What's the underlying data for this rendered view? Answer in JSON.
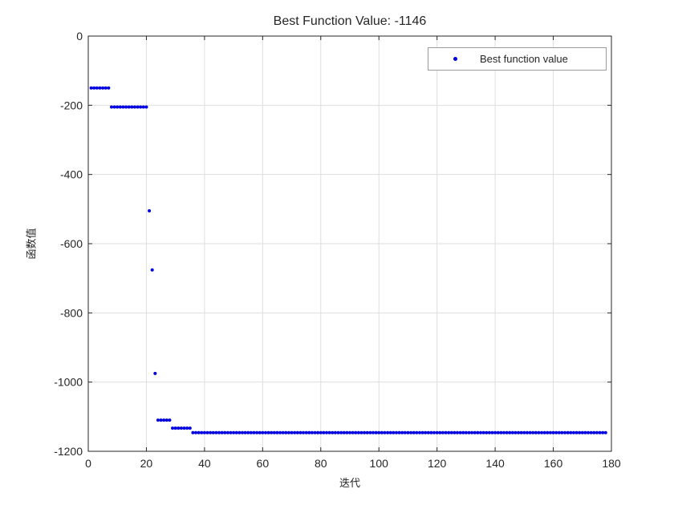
{
  "colors": {
    "background": "#ffffff",
    "axis": "#262626",
    "grid": "#dedede",
    "tick_text": "#262626",
    "marker": "#0000e1",
    "legend_border": "#9b9b9b"
  },
  "legend": {
    "entries": [
      {
        "label": "Best function value",
        "marker": "dot",
        "color": "#0000e1"
      }
    ],
    "position": "top-right"
  },
  "chart_data": {
    "type": "scatter",
    "title": "Best Function Value: -1146",
    "xlabel": "迭代",
    "ylabel": "函数值",
    "xlim": [
      0,
      180
    ],
    "ylim": [
      -1200,
      0
    ],
    "xticks": [
      0,
      20,
      40,
      60,
      80,
      100,
      120,
      140,
      160,
      180
    ],
    "yticks": [
      0,
      -200,
      -400,
      -600,
      -800,
      -1000,
      -1200
    ],
    "grid": true,
    "legend_position": "top-right",
    "series": [
      {
        "name": "Best function value",
        "marker": "point",
        "color": "#0000e1",
        "x_step": 1,
        "segments": [
          {
            "x_start": 1,
            "x_end": 7,
            "y": -150
          },
          {
            "x_start": 8,
            "x_end": 20,
            "y": -205
          },
          {
            "x_start": 21,
            "x_end": 21,
            "y": -505
          },
          {
            "x_start": 22,
            "x_end": 22,
            "y": -676
          },
          {
            "x_start": 23,
            "x_end": 23,
            "y": -975
          },
          {
            "x_start": 24,
            "x_end": 28,
            "y": -1110
          },
          {
            "x_start": 29,
            "x_end": 35,
            "y": -1133
          },
          {
            "x_start": 36,
            "x_end": 178,
            "y": -1146
          }
        ]
      }
    ]
  }
}
